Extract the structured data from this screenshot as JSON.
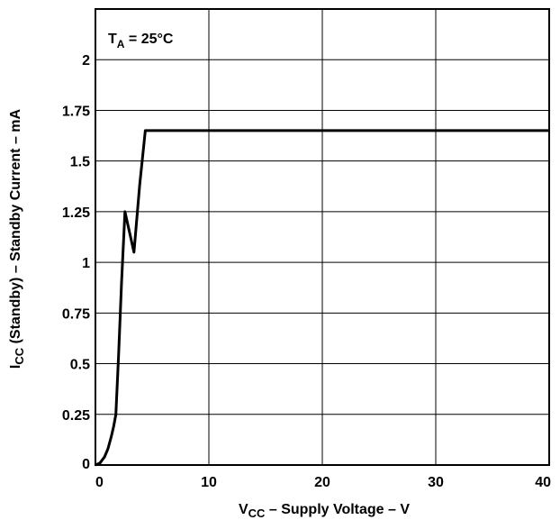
{
  "chart_data": {
    "type": "line",
    "annotation": {
      "main": "T",
      "sub": "A",
      "rest": " = 25°C"
    },
    "xlabel": {
      "main": "V",
      "sub": "CC",
      "rest": " – Supply Voltage – V"
    },
    "ylabel": {
      "main": "I",
      "sub": "CC",
      "rest": " (Standby) – Standby Current – mA"
    },
    "xlim": [
      0,
      40
    ],
    "ylim": [
      0,
      2.25
    ],
    "x_ticks": [
      0,
      10,
      20,
      30,
      40
    ],
    "x_tick_labels": [
      "0",
      "10",
      "20",
      "30",
      "40"
    ],
    "y_ticks": [
      0,
      0.25,
      0.5,
      0.75,
      1,
      1.25,
      1.5,
      1.75,
      2
    ],
    "y_tick_labels": [
      "0",
      "0.25",
      "0.5",
      "0.75",
      "1",
      "1.25",
      "1.5",
      "1.75",
      "2"
    ],
    "grid": true,
    "series": [
      {
        "x": [
          0,
          0.4,
          0.8,
          1.1,
          1.4,
          1.6,
          1.8,
          2.05,
          2.3,
          2.6,
          3.0,
          3.4,
          3.9,
          4.4,
          10,
          20,
          30,
          40
        ],
        "y": [
          0,
          0.01,
          0.04,
          0.08,
          0.14,
          0.19,
          0.25,
          0.55,
          0.9,
          1.25,
          1.15,
          1.05,
          1.38,
          1.65,
          1.65,
          1.65,
          1.65,
          1.65
        ]
      }
    ]
  }
}
